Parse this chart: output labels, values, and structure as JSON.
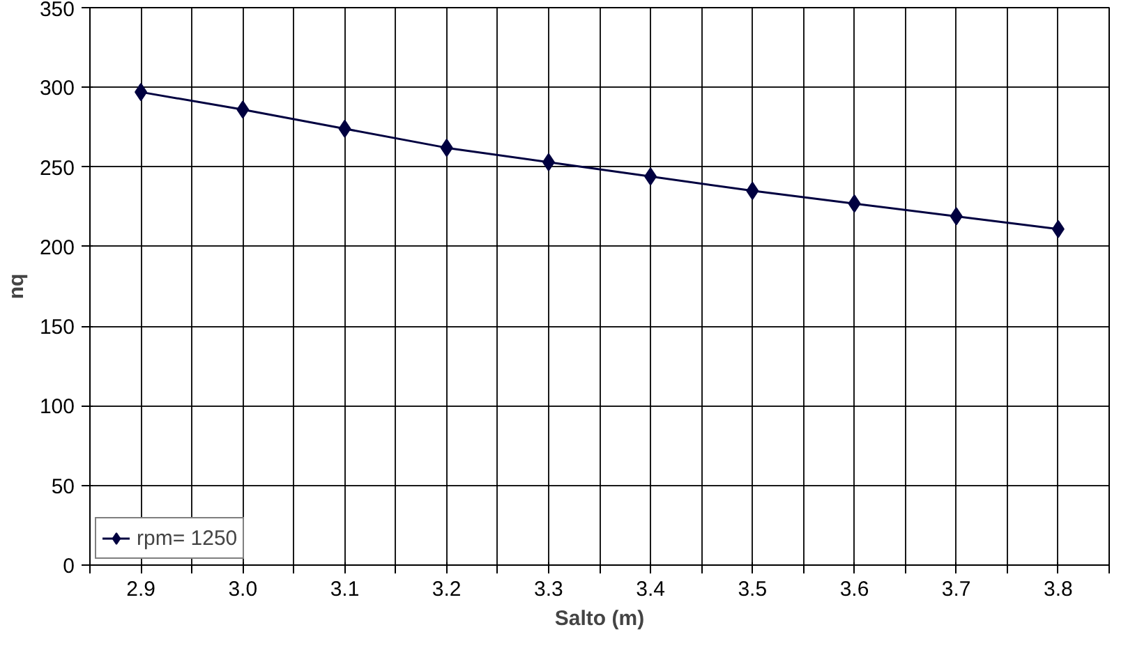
{
  "chart_data": {
    "type": "line",
    "xlabel": "Salto (m)",
    "ylabel": "nq",
    "categories": [
      "2.9",
      "3.0",
      "3.1",
      "3.2",
      "3.3",
      "3.4",
      "3.5",
      "3.6",
      "3.7",
      "3.8"
    ],
    "series": [
      {
        "name": "rpm= 1250",
        "color": "#000040",
        "values": [
          297,
          286,
          274,
          262,
          253,
          244,
          235,
          227,
          219,
          211
        ]
      }
    ],
    "ylim": [
      0,
      350
    ],
    "yticks": [
      0,
      50,
      100,
      150,
      200,
      250,
      300,
      350
    ],
    "grid": true,
    "legend": "bottom left",
    "marker": "diamond",
    "line_style": "solid"
  }
}
